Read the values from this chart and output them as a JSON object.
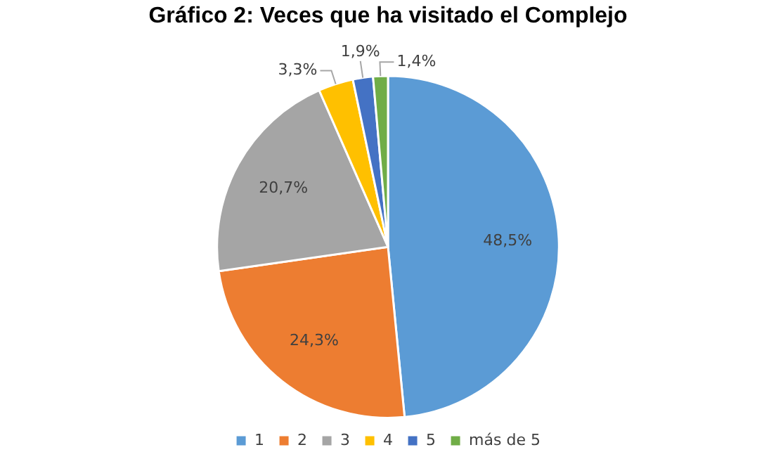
{
  "chart_data": {
    "type": "pie",
    "title": "Gráfico 2: Veces que ha visitado el Complejo",
    "categories": [
      "1",
      "2",
      "3",
      "4",
      "5",
      "más de 5"
    ],
    "values": [
      48.5,
      24.3,
      20.7,
      3.3,
      1.9,
      1.4
    ],
    "colors": [
      "#5b9bd5",
      "#ed7d31",
      "#a5a5a5",
      "#ffc000",
      "#4472c4",
      "#70ad47"
    ],
    "value_labels": [
      "48,5%",
      "24,3%",
      "20,7%",
      "3,3%",
      "1,9%",
      "1,4%"
    ],
    "legend": "bottom"
  }
}
